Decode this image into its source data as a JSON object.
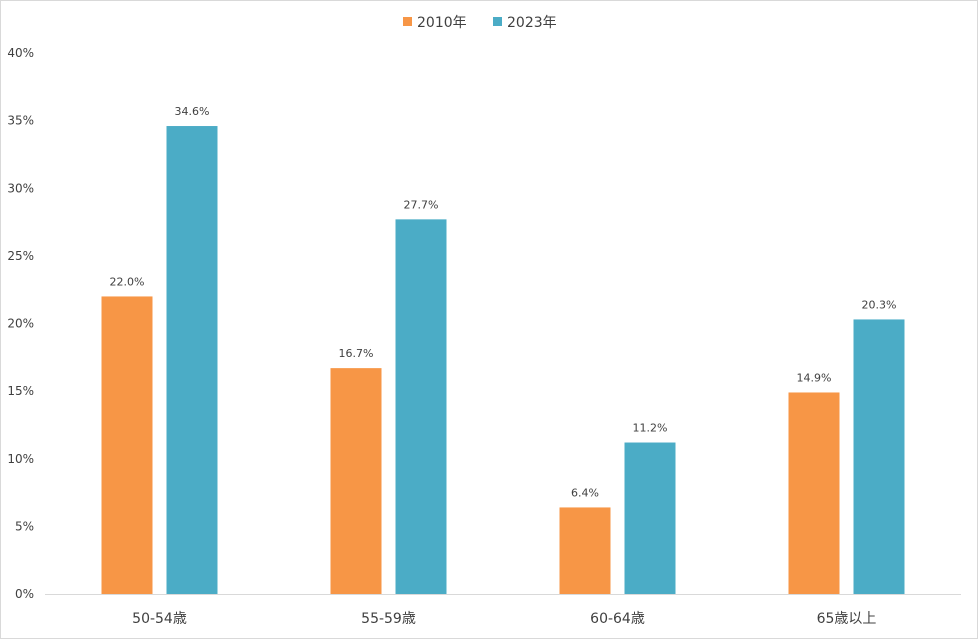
{
  "chart_data": {
    "type": "bar",
    "title": "",
    "xlabel": "",
    "ylabel": "",
    "categories": [
      "50-54歳",
      "55-59歳",
      "60-64歳",
      "65歳以上"
    ],
    "series": [
      {
        "name": "2010年",
        "color": "#f79646",
        "values": [
          22.0,
          16.7,
          6.4,
          14.9
        ],
        "labels": [
          "22.0%",
          "16.7%",
          "6.4%",
          "14.9%"
        ]
      },
      {
        "name": "2023年",
        "color": "#4bacc6",
        "values": [
          34.6,
          27.7,
          11.2,
          20.3
        ],
        "labels": [
          "34.6%",
          "27.7%",
          "11.2%",
          "20.3%"
        ]
      }
    ],
    "ylim": [
      0,
      40
    ],
    "yticks": [
      0,
      5,
      10,
      15,
      20,
      25,
      30,
      35,
      40
    ],
    "ytick_labels": [
      "0%",
      "5%",
      "10%",
      "15%",
      "20%",
      "25%",
      "30%",
      "35%",
      "40%"
    ],
    "grid": false,
    "legend": "top-center"
  }
}
